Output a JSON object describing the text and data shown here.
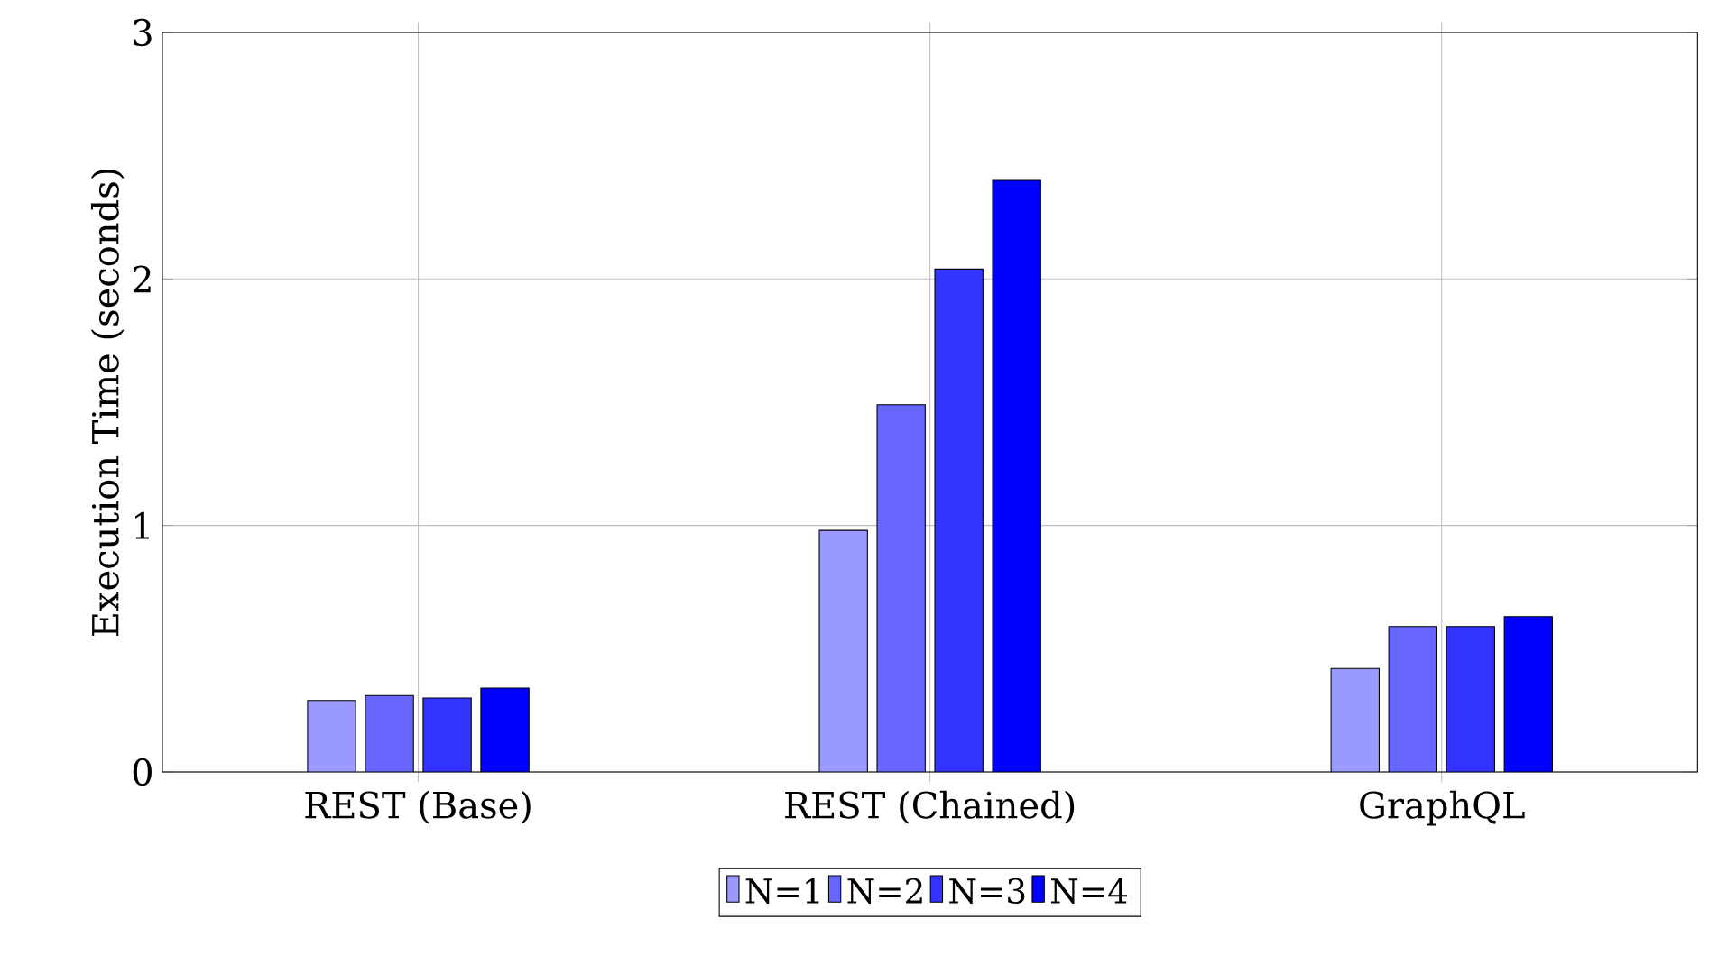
{
  "chart_data": {
    "type": "bar",
    "ylabel": "Execution Time (seconds)",
    "categories": [
      "REST (Base)",
      "REST (Chained)",
      "GraphQL"
    ],
    "series": [
      {
        "name": "N=1",
        "color": "#9999ff",
        "values": [
          0.29,
          0.98,
          0.42
        ]
      },
      {
        "name": "N=2",
        "color": "#6666ff",
        "values": [
          0.31,
          1.49,
          0.59
        ]
      },
      {
        "name": "N=3",
        "color": "#3333ff",
        "values": [
          0.3,
          2.04,
          0.59
        ]
      },
      {
        "name": "N=4",
        "color": "#0000ff",
        "values": [
          0.34,
          2.4,
          0.63
        ]
      }
    ],
    "ylim": [
      0,
      3
    ],
    "yticks": [
      0,
      1,
      2,
      3
    ],
    "grid": true,
    "legend": "bottom"
  }
}
